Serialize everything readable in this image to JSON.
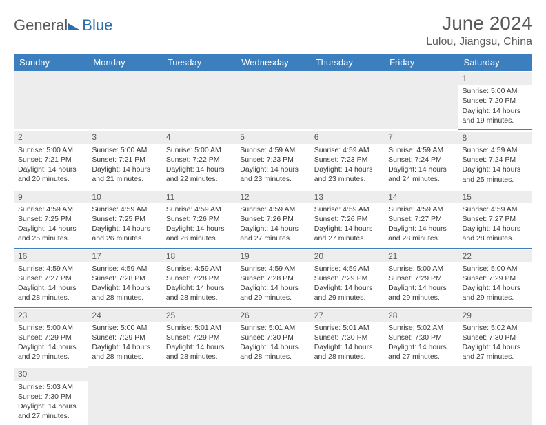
{
  "logo": {
    "part1": "General",
    "part2": "Blue"
  },
  "title": "June 2024",
  "location": "Lulou, Jiangsu, China",
  "header_bg": "#3b7fbf",
  "daynum_bg": "#ededed",
  "weekdays": [
    "Sunday",
    "Monday",
    "Tuesday",
    "Wednesday",
    "Thursday",
    "Friday",
    "Saturday"
  ],
  "weeks": [
    [
      null,
      null,
      null,
      null,
      null,
      null,
      {
        "d": "1",
        "sr": "Sunrise: 5:00 AM",
        "ss": "Sunset: 7:20 PM",
        "dl1": "Daylight: 14 hours",
        "dl2": "and 19 minutes."
      }
    ],
    [
      {
        "d": "2",
        "sr": "Sunrise: 5:00 AM",
        "ss": "Sunset: 7:21 PM",
        "dl1": "Daylight: 14 hours",
        "dl2": "and 20 minutes."
      },
      {
        "d": "3",
        "sr": "Sunrise: 5:00 AM",
        "ss": "Sunset: 7:21 PM",
        "dl1": "Daylight: 14 hours",
        "dl2": "and 21 minutes."
      },
      {
        "d": "4",
        "sr": "Sunrise: 5:00 AM",
        "ss": "Sunset: 7:22 PM",
        "dl1": "Daylight: 14 hours",
        "dl2": "and 22 minutes."
      },
      {
        "d": "5",
        "sr": "Sunrise: 4:59 AM",
        "ss": "Sunset: 7:23 PM",
        "dl1": "Daylight: 14 hours",
        "dl2": "and 23 minutes."
      },
      {
        "d": "6",
        "sr": "Sunrise: 4:59 AM",
        "ss": "Sunset: 7:23 PM",
        "dl1": "Daylight: 14 hours",
        "dl2": "and 23 minutes."
      },
      {
        "d": "7",
        "sr": "Sunrise: 4:59 AM",
        "ss": "Sunset: 7:24 PM",
        "dl1": "Daylight: 14 hours",
        "dl2": "and 24 minutes."
      },
      {
        "d": "8",
        "sr": "Sunrise: 4:59 AM",
        "ss": "Sunset: 7:24 PM",
        "dl1": "Daylight: 14 hours",
        "dl2": "and 25 minutes."
      }
    ],
    [
      {
        "d": "9",
        "sr": "Sunrise: 4:59 AM",
        "ss": "Sunset: 7:25 PM",
        "dl1": "Daylight: 14 hours",
        "dl2": "and 25 minutes."
      },
      {
        "d": "10",
        "sr": "Sunrise: 4:59 AM",
        "ss": "Sunset: 7:25 PM",
        "dl1": "Daylight: 14 hours",
        "dl2": "and 26 minutes."
      },
      {
        "d": "11",
        "sr": "Sunrise: 4:59 AM",
        "ss": "Sunset: 7:26 PM",
        "dl1": "Daylight: 14 hours",
        "dl2": "and 26 minutes."
      },
      {
        "d": "12",
        "sr": "Sunrise: 4:59 AM",
        "ss": "Sunset: 7:26 PM",
        "dl1": "Daylight: 14 hours",
        "dl2": "and 27 minutes."
      },
      {
        "d": "13",
        "sr": "Sunrise: 4:59 AM",
        "ss": "Sunset: 7:26 PM",
        "dl1": "Daylight: 14 hours",
        "dl2": "and 27 minutes."
      },
      {
        "d": "14",
        "sr": "Sunrise: 4:59 AM",
        "ss": "Sunset: 7:27 PM",
        "dl1": "Daylight: 14 hours",
        "dl2": "and 28 minutes."
      },
      {
        "d": "15",
        "sr": "Sunrise: 4:59 AM",
        "ss": "Sunset: 7:27 PM",
        "dl1": "Daylight: 14 hours",
        "dl2": "and 28 minutes."
      }
    ],
    [
      {
        "d": "16",
        "sr": "Sunrise: 4:59 AM",
        "ss": "Sunset: 7:27 PM",
        "dl1": "Daylight: 14 hours",
        "dl2": "and 28 minutes."
      },
      {
        "d": "17",
        "sr": "Sunrise: 4:59 AM",
        "ss": "Sunset: 7:28 PM",
        "dl1": "Daylight: 14 hours",
        "dl2": "and 28 minutes."
      },
      {
        "d": "18",
        "sr": "Sunrise: 4:59 AM",
        "ss": "Sunset: 7:28 PM",
        "dl1": "Daylight: 14 hours",
        "dl2": "and 28 minutes."
      },
      {
        "d": "19",
        "sr": "Sunrise: 4:59 AM",
        "ss": "Sunset: 7:28 PM",
        "dl1": "Daylight: 14 hours",
        "dl2": "and 29 minutes."
      },
      {
        "d": "20",
        "sr": "Sunrise: 4:59 AM",
        "ss": "Sunset: 7:29 PM",
        "dl1": "Daylight: 14 hours",
        "dl2": "and 29 minutes."
      },
      {
        "d": "21",
        "sr": "Sunrise: 5:00 AM",
        "ss": "Sunset: 7:29 PM",
        "dl1": "Daylight: 14 hours",
        "dl2": "and 29 minutes."
      },
      {
        "d": "22",
        "sr": "Sunrise: 5:00 AM",
        "ss": "Sunset: 7:29 PM",
        "dl1": "Daylight: 14 hours",
        "dl2": "and 29 minutes."
      }
    ],
    [
      {
        "d": "23",
        "sr": "Sunrise: 5:00 AM",
        "ss": "Sunset: 7:29 PM",
        "dl1": "Daylight: 14 hours",
        "dl2": "and 29 minutes."
      },
      {
        "d": "24",
        "sr": "Sunrise: 5:00 AM",
        "ss": "Sunset: 7:29 PM",
        "dl1": "Daylight: 14 hours",
        "dl2": "and 28 minutes."
      },
      {
        "d": "25",
        "sr": "Sunrise: 5:01 AM",
        "ss": "Sunset: 7:29 PM",
        "dl1": "Daylight: 14 hours",
        "dl2": "and 28 minutes."
      },
      {
        "d": "26",
        "sr": "Sunrise: 5:01 AM",
        "ss": "Sunset: 7:30 PM",
        "dl1": "Daylight: 14 hours",
        "dl2": "and 28 minutes."
      },
      {
        "d": "27",
        "sr": "Sunrise: 5:01 AM",
        "ss": "Sunset: 7:30 PM",
        "dl1": "Daylight: 14 hours",
        "dl2": "and 28 minutes."
      },
      {
        "d": "28",
        "sr": "Sunrise: 5:02 AM",
        "ss": "Sunset: 7:30 PM",
        "dl1": "Daylight: 14 hours",
        "dl2": "and 27 minutes."
      },
      {
        "d": "29",
        "sr": "Sunrise: 5:02 AM",
        "ss": "Sunset: 7:30 PM",
        "dl1": "Daylight: 14 hours",
        "dl2": "and 27 minutes."
      }
    ],
    [
      {
        "d": "30",
        "sr": "Sunrise: 5:03 AM",
        "ss": "Sunset: 7:30 PM",
        "dl1": "Daylight: 14 hours",
        "dl2": "and 27 minutes."
      },
      null,
      null,
      null,
      null,
      null,
      null
    ]
  ]
}
